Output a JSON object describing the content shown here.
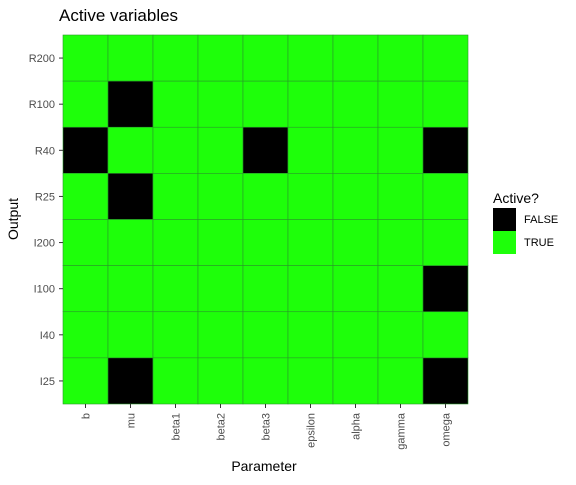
{
  "chart_data": {
    "type": "heatmap",
    "title": "Active variables",
    "xlabel": "Parameter",
    "ylabel": "Output",
    "x_categories": [
      "b",
      "mu",
      "beta1",
      "beta2",
      "beta3",
      "epsilon",
      "alpha",
      "gamma",
      "omega"
    ],
    "y_categories": [
      "R200",
      "R100",
      "R40",
      "R25",
      "I200",
      "I100",
      "I40",
      "I25"
    ],
    "values": [
      [
        true,
        true,
        true,
        true,
        true,
        true,
        true,
        true,
        true
      ],
      [
        true,
        false,
        true,
        true,
        true,
        true,
        true,
        true,
        true
      ],
      [
        false,
        true,
        true,
        true,
        false,
        true,
        true,
        true,
        false
      ],
      [
        true,
        false,
        true,
        true,
        true,
        true,
        true,
        true,
        true
      ],
      [
        true,
        true,
        true,
        true,
        true,
        true,
        true,
        true,
        true
      ],
      [
        true,
        true,
        true,
        true,
        true,
        true,
        true,
        true,
        false
      ],
      [
        true,
        true,
        true,
        true,
        true,
        true,
        true,
        true,
        true
      ],
      [
        true,
        false,
        true,
        true,
        true,
        true,
        true,
        true,
        false
      ]
    ],
    "legend": {
      "title": "Active?",
      "position": "right",
      "entries": [
        {
          "label": "FALSE",
          "color": "#000000"
        },
        {
          "label": "TRUE",
          "color": "#1eff0a"
        }
      ]
    },
    "colors": {
      "false": "#000000",
      "true": "#1eff0a",
      "cell_border": "#2a9a2a"
    },
    "grid": false
  }
}
